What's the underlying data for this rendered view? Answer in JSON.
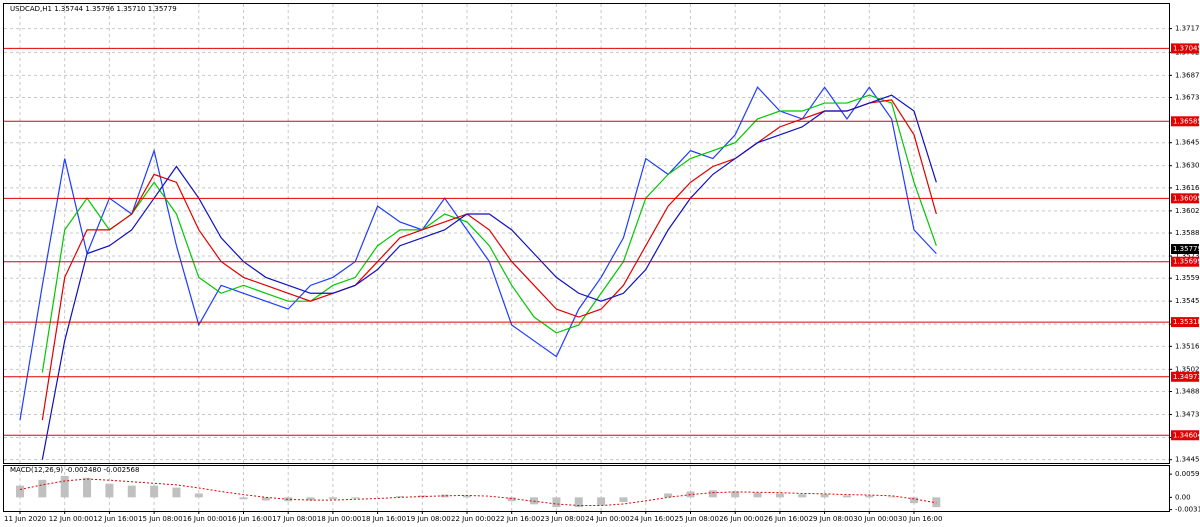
{
  "chart_data": [
    {
      "type": "line",
      "title": "USDCAD,H1  1.35744 1.35796 1.35710 1.35779",
      "categories": [
        "11 Jun 2020",
        null,
        "12 Jun 00:00",
        null,
        "12 Jun 16:00",
        null,
        "15 Jun 08:00",
        null,
        "16 Jun 00:00",
        null,
        "16 Jun 16:00",
        null,
        "17 Jun 08:00",
        null,
        "18 Jun 00:00",
        null,
        "18 Jun 16:00",
        null,
        "19 Jun 08:00",
        null,
        "22 Jun 00:00",
        null,
        "22 Jun 16:00",
        null,
        "23 Jun 08:00",
        null,
        "24 Jun 00:00",
        null,
        "24 Jun 16:00",
        null,
        "25 Jun 08:00",
        null,
        "26 Jun 00:00",
        null,
        "26 Jun 16:00",
        null,
        "29 Jun 08:00",
        null,
        "30 Jun 00:00",
        null,
        "30 Jun 16:00",
        null
      ],
      "series": [
        {
          "color": "#1e3cff",
          "values": [
            1.347,
            1.3555,
            1.3635,
            1.3575,
            1.361,
            1.36,
            1.364,
            1.358,
            1.353,
            1.3555,
            1.355,
            1.3545,
            1.354,
            1.3555,
            1.356,
            1.357,
            1.3605,
            1.3595,
            1.359,
            1.361,
            1.359,
            1.357,
            1.353,
            1.352,
            1.351,
            1.354,
            1.356,
            1.3585,
            1.3635,
            1.3625,
            1.364,
            1.3635,
            1.365,
            1.368,
            1.3665,
            1.366,
            1.368,
            1.366,
            1.368,
            1.366,
            1.359,
            1.3575
          ]
        },
        {
          "color": "#00c800",
          "values": [
            null,
            1.35,
            1.359,
            1.361,
            1.359,
            1.36,
            1.362,
            1.36,
            1.356,
            1.355,
            1.3555,
            1.355,
            1.3545,
            1.3545,
            1.3555,
            1.356,
            1.358,
            1.359,
            1.359,
            1.36,
            1.3595,
            1.358,
            1.3555,
            1.3535,
            1.3525,
            1.353,
            1.355,
            1.357,
            1.361,
            1.3625,
            1.3635,
            1.364,
            1.3645,
            1.366,
            1.3665,
            1.3665,
            1.367,
            1.367,
            1.3675,
            1.367,
            1.362,
            1.358
          ]
        },
        {
          "color": "#e00000",
          "values": [
            null,
            1.347,
            1.356,
            1.359,
            1.359,
            1.36,
            1.3625,
            1.362,
            1.359,
            1.357,
            1.356,
            1.3555,
            1.355,
            1.3545,
            1.355,
            1.3555,
            1.357,
            1.3585,
            1.359,
            1.3595,
            1.36,
            1.359,
            1.357,
            1.3555,
            1.354,
            1.3535,
            1.354,
            1.3555,
            1.358,
            1.3605,
            1.362,
            1.363,
            1.3635,
            1.3645,
            1.3655,
            1.366,
            1.3665,
            1.3665,
            1.367,
            1.3672,
            1.365,
            1.36
          ]
        },
        {
          "color": "#1010c0",
          "values": [
            null,
            1.3445,
            1.352,
            1.3575,
            1.358,
            1.359,
            1.361,
            1.363,
            1.361,
            1.3585,
            1.357,
            1.356,
            1.3555,
            1.355,
            1.355,
            1.3555,
            1.3565,
            1.358,
            1.3585,
            1.359,
            1.36,
            1.36,
            1.359,
            1.3575,
            1.356,
            1.355,
            1.3545,
            1.355,
            1.3565,
            1.359,
            1.361,
            1.3625,
            1.3635,
            1.3645,
            1.365,
            1.3655,
            1.3665,
            1.3665,
            1.367,
            1.3675,
            1.3665,
            1.362
          ]
        }
      ],
      "hlines": [
        1.37045,
        1.36585,
        1.36099,
        1.35699,
        1.35318,
        1.34973,
        1.34604
      ],
      "hline_color": "#e00000",
      "last_price": 1.35779,
      "ylim": [
        1.3441,
        1.373
      ],
      "yticks": [
        {
          "value": 1.3445,
          "label": "1.34450"
        },
        {
          "value": 1.3459,
          "label": "1.34590"
        },
        {
          "value": 1.34735,
          "label": "1.34735"
        },
        {
          "value": 1.3488,
          "label": "1.34880"
        },
        {
          "value": 1.3502,
          "label": "1.35020"
        },
        {
          "value": 1.35165,
          "label": "1.35165"
        },
        {
          "value": 1.35305,
          "label": "1.35305"
        },
        {
          "value": 1.3545,
          "label": "1.35450"
        },
        {
          "value": 1.35595,
          "label": "1.35595"
        },
        {
          "value": 1.35735,
          "label": "1.35735"
        },
        {
          "value": 1.3588,
          "label": "1.35880"
        },
        {
          "value": 1.3602,
          "label": "1.36020"
        },
        {
          "value": 1.36165,
          "label": "1.36165"
        },
        {
          "value": 1.36305,
          "label": "1.36305"
        },
        {
          "value": 1.3645,
          "label": "1.36450"
        },
        {
          "value": 1.36735,
          "label": "1.36735"
        },
        {
          "value": 1.36875,
          "label": "1.36875"
        },
        {
          "value": 1.3702,
          "label": "1.37020"
        },
        {
          "value": 1.3717,
          "label": "1.37170"
        }
      ],
      "grid": true
    },
    {
      "type": "macd",
      "title": "MACD(12,26,9) -0.002480 -0.002568",
      "series": [
        {
          "color": "#c0c0c0",
          "values": [
            0.003,
            0.0045,
            0.0055,
            0.005,
            0.0035,
            0.003,
            0.003,
            0.0025,
            0.001,
            0.0,
            -0.0005,
            -0.0008,
            -0.001,
            -0.0008,
            -0.0005,
            -0.0003,
            0.0,
            0.0003,
            0.0005,
            0.0007,
            0.0005,
            0.0,
            -0.001,
            -0.0018,
            -0.0025,
            -0.0025,
            -0.002,
            -0.0012,
            0.0,
            0.001,
            0.0015,
            0.0018,
            0.0015,
            0.0012,
            0.001,
            0.0008,
            0.0008,
            0.0005,
            0.0005,
            0.0002,
            -0.0015,
            -0.0025
          ]
        },
        {
          "color": "#e00000",
          "values": [
            0.002,
            0.0032,
            0.0042,
            0.0047,
            0.0044,
            0.004,
            0.0036,
            0.0032,
            0.0024,
            0.0015,
            0.0007,
            0.0,
            -0.0005,
            -0.0007,
            -0.0007,
            -0.0005,
            -0.0003,
            0.0,
            0.0002,
            0.0004,
            0.0005,
            0.0003,
            -0.0003,
            -0.001,
            -0.0017,
            -0.0021,
            -0.0021,
            -0.0017,
            -0.0009,
            0.0,
            0.0007,
            0.0012,
            0.0014,
            0.0013,
            0.0012,
            0.001,
            0.0009,
            0.0007,
            0.0006,
            0.0004,
            -0.0004,
            -0.0014
          ]
        }
      ],
      "ylim": [
        -0.0035,
        0.0065
      ],
      "yticks": [
        0.005954,
        {
          "value": 0,
          "label": "0.00"
        },
        -0.00314
      ],
      "grid": true
    }
  ]
}
